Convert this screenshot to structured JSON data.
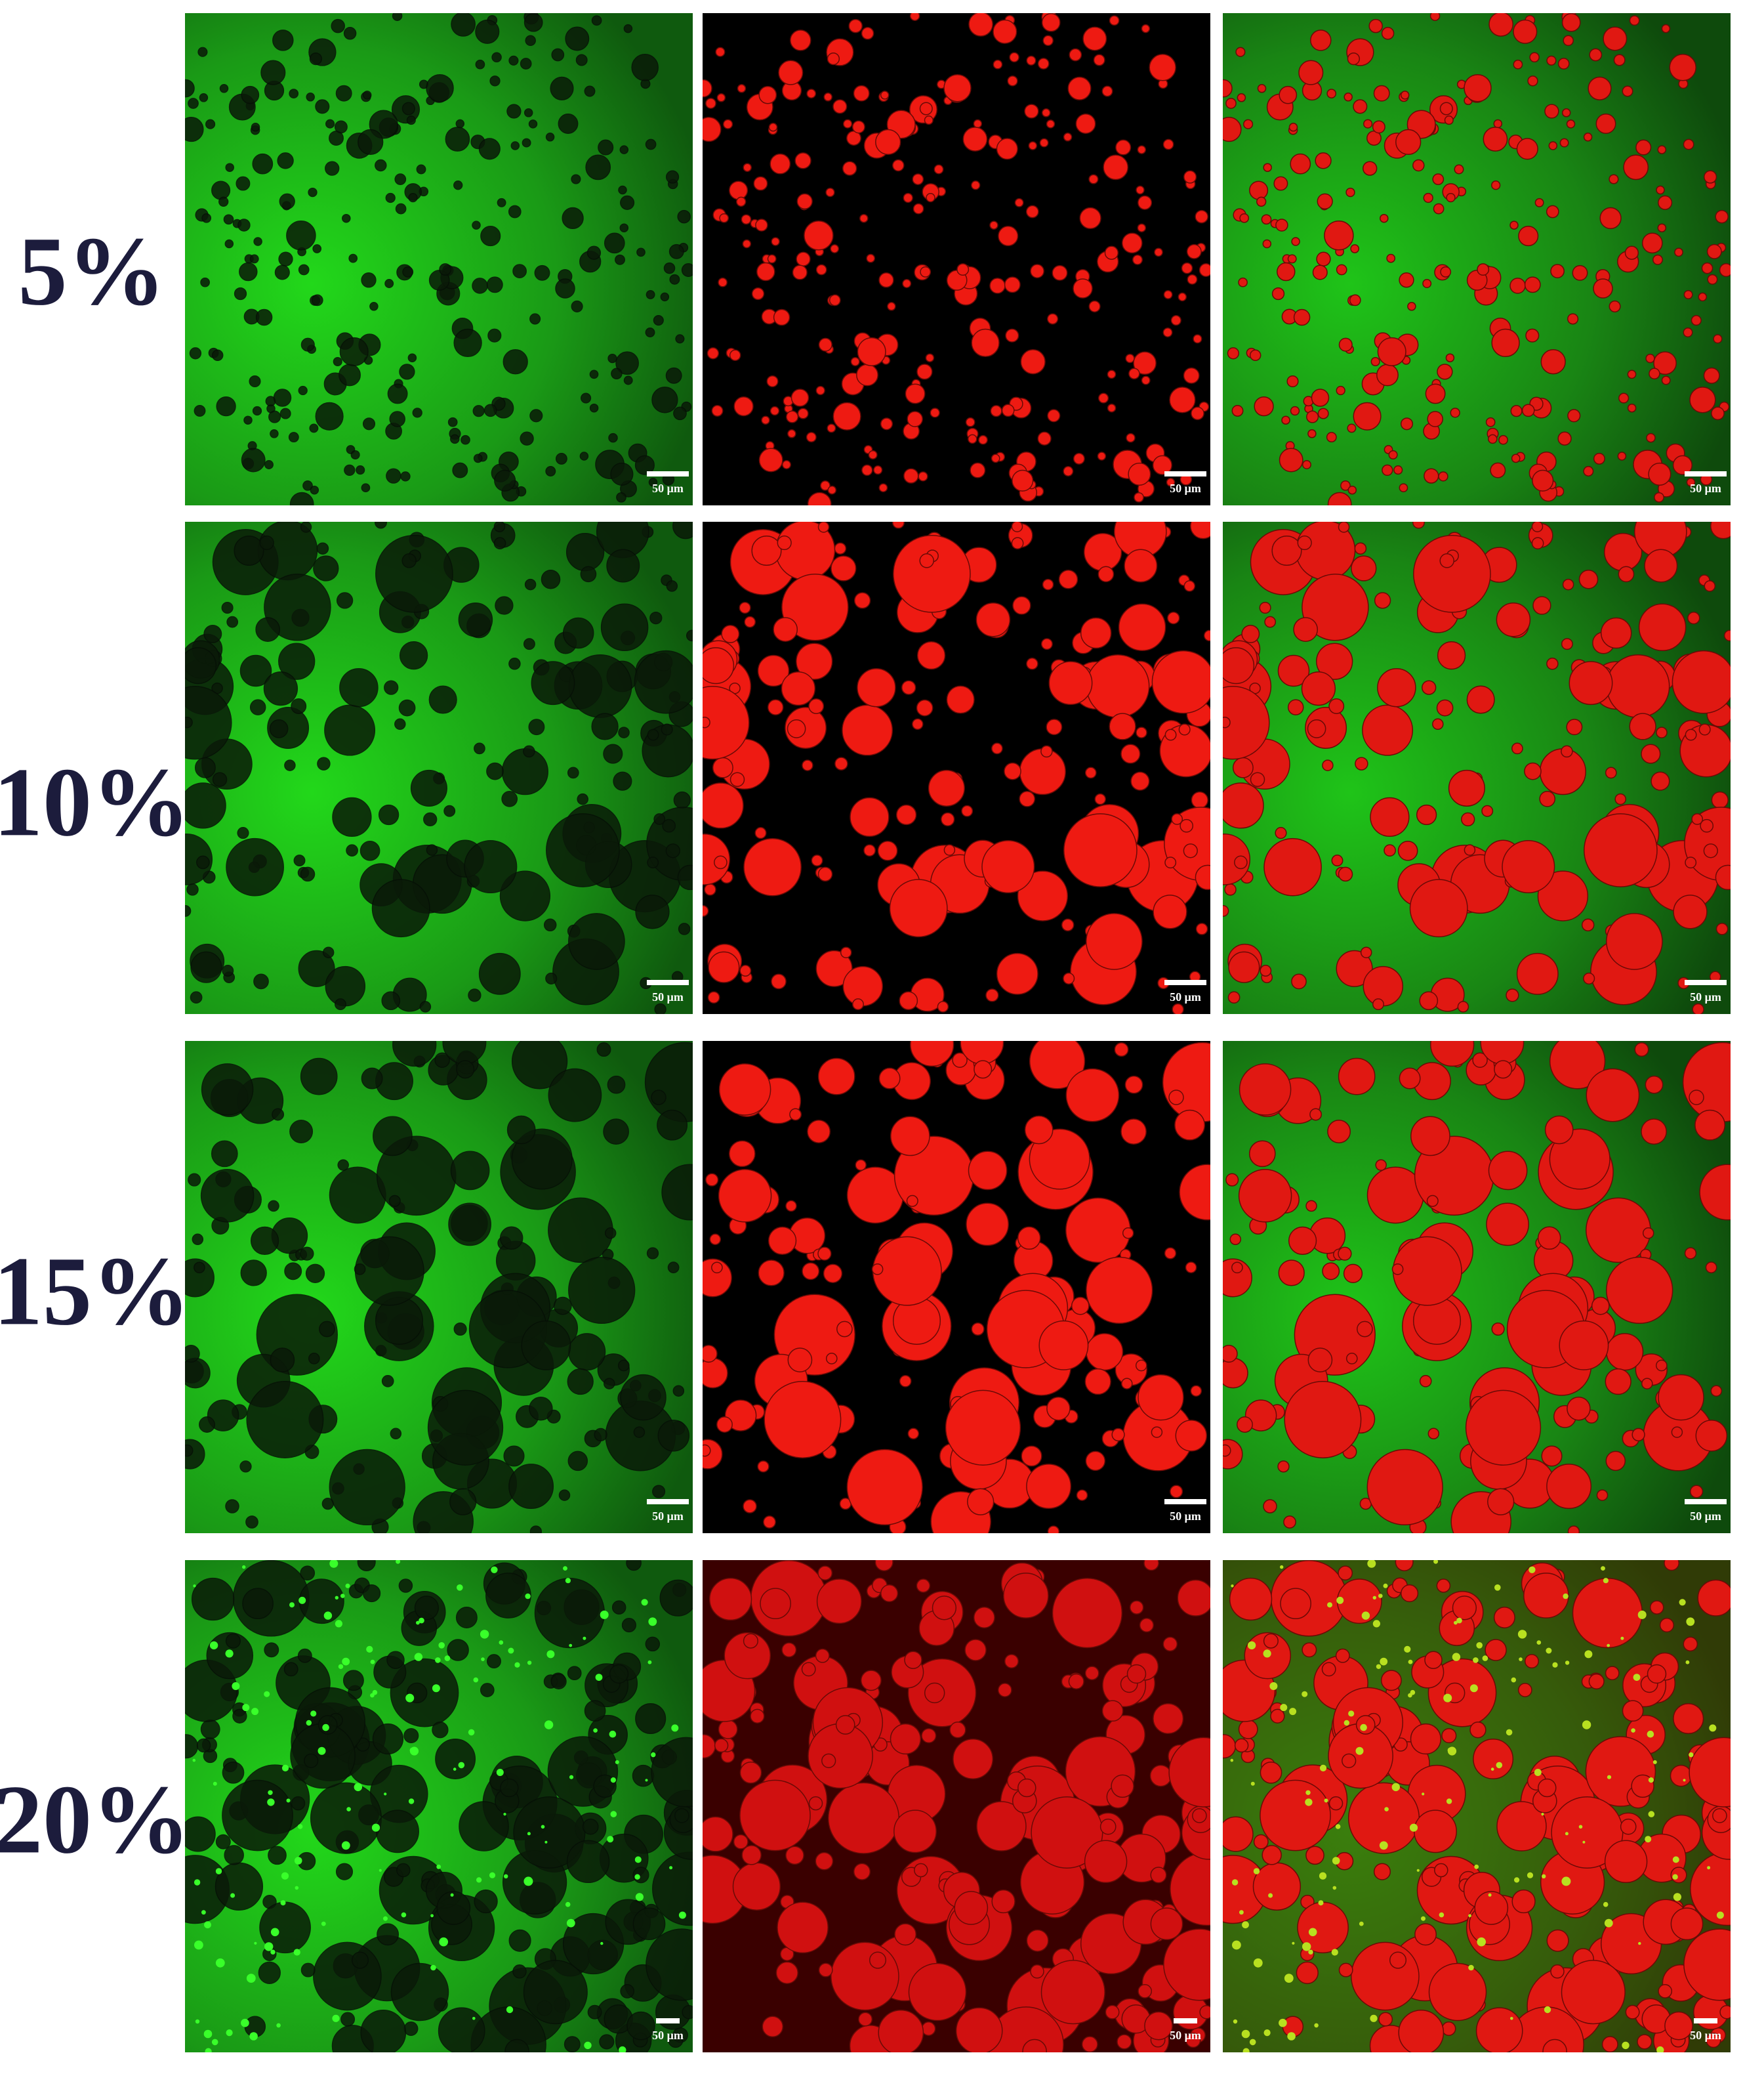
{
  "rows": [
    {
      "label": "5%",
      "panels": [
        {
          "scale_bar": "50 μm"
        },
        {
          "scale_bar": "50 μm"
        },
        {
          "scale_bar": "50 μm"
        }
      ]
    },
    {
      "label": "10%",
      "panels": [
        {
          "scale_bar": "50 μm"
        },
        {
          "scale_bar": "50 μm"
        },
        {
          "scale_bar": "50 μm"
        }
      ]
    },
    {
      "label": "15%",
      "panels": [
        {
          "scale_bar": "50 μm"
        },
        {
          "scale_bar": "50 μm"
        },
        {
          "scale_bar": "50 μm"
        }
      ]
    },
    {
      "label": "20%",
      "panels": [
        {
          "scale_bar": "50 μm"
        },
        {
          "scale_bar": "50 μm"
        },
        {
          "scale_bar": "50 μm"
        }
      ]
    }
  ]
}
